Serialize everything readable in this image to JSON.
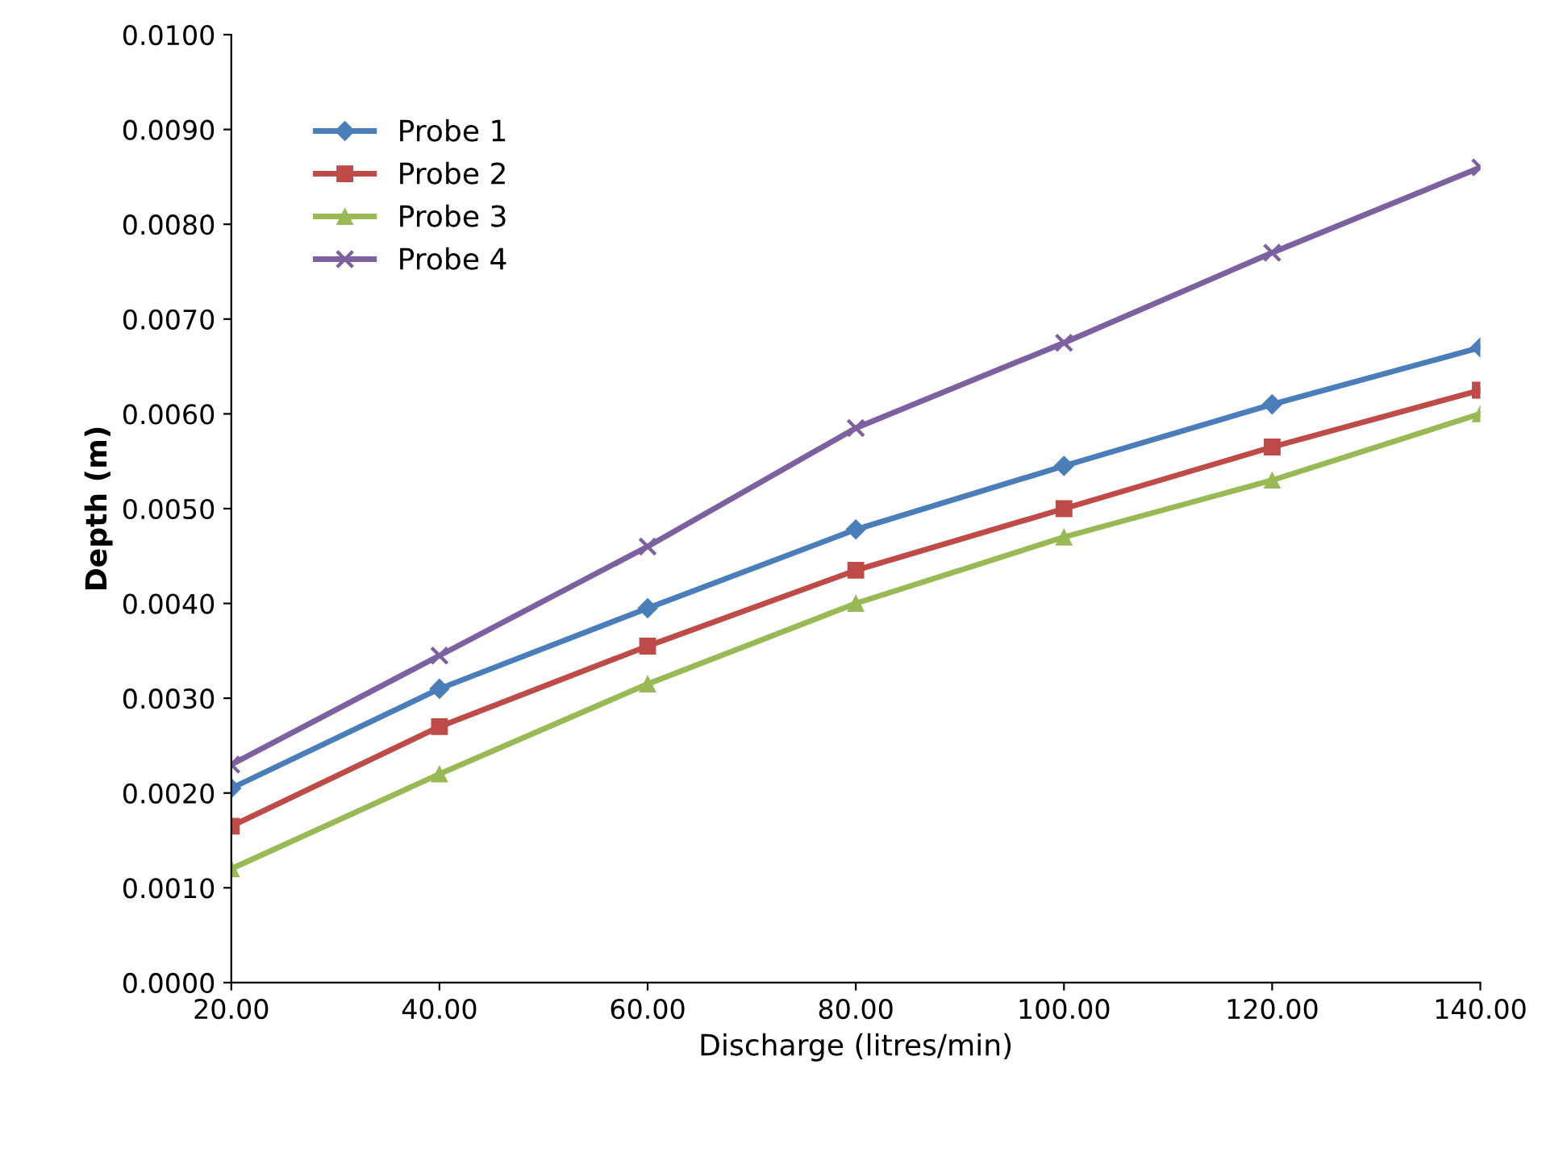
{
  "chart_data": {
    "type": "line",
    "xlabel": "Discharge (litres/min)",
    "ylabel": "Depth (m)",
    "x": [
      20,
      40,
      60,
      80,
      100,
      120,
      140
    ],
    "series": [
      {
        "name": "Probe 1",
        "color": "#4a7ebb",
        "marker": "diamond",
        "values": [
          0.00205,
          0.0031,
          0.00395,
          0.00478,
          0.00545,
          0.0061,
          0.0067
        ]
      },
      {
        "name": "Probe 2",
        "color": "#be4b48",
        "marker": "square",
        "values": [
          0.00165,
          0.0027,
          0.00355,
          0.00435,
          0.005,
          0.00565,
          0.00625
        ]
      },
      {
        "name": "Probe 3",
        "color": "#98b954",
        "marker": "triangle",
        "values": [
          0.0012,
          0.0022,
          0.00315,
          0.004,
          0.0047,
          0.0053,
          0.006
        ]
      },
      {
        "name": "Probe 4",
        "color": "#7d60a0",
        "marker": "cross",
        "values": [
          0.0023,
          0.00345,
          0.0046,
          0.00585,
          0.00675,
          0.0077,
          0.0086
        ]
      }
    ],
    "xlim": [
      20,
      140
    ],
    "xticks": [
      {
        "value": 20,
        "label": "20.00"
      },
      {
        "value": 40,
        "label": "40.00"
      },
      {
        "value": 60,
        "label": "60.00"
      },
      {
        "value": 80,
        "label": "80.00"
      },
      {
        "value": 100,
        "label": "100.00"
      },
      {
        "value": 120,
        "label": "120.00"
      },
      {
        "value": 140,
        "label": "140.00"
      }
    ],
    "ylim": [
      0,
      0.01
    ],
    "yticks": [
      {
        "value": 0,
        "label": "0.0000"
      },
      {
        "value": 0.001,
        "label": "0.0010"
      },
      {
        "value": 0.002,
        "label": "0.0020"
      },
      {
        "value": 0.003,
        "label": "0.0030"
      },
      {
        "value": 0.004,
        "label": "0.0040"
      },
      {
        "value": 0.005,
        "label": "0.0050"
      },
      {
        "value": 0.006,
        "label": "0.0060"
      },
      {
        "value": 0.007,
        "label": "0.0070"
      },
      {
        "value": 0.008,
        "label": "0.0080"
      },
      {
        "value": 0.009,
        "label": "0.0090"
      },
      {
        "value": 0.01,
        "label": "0.0100"
      }
    ],
    "grid": false,
    "legend": "top left",
    "line_style": "solid"
  }
}
